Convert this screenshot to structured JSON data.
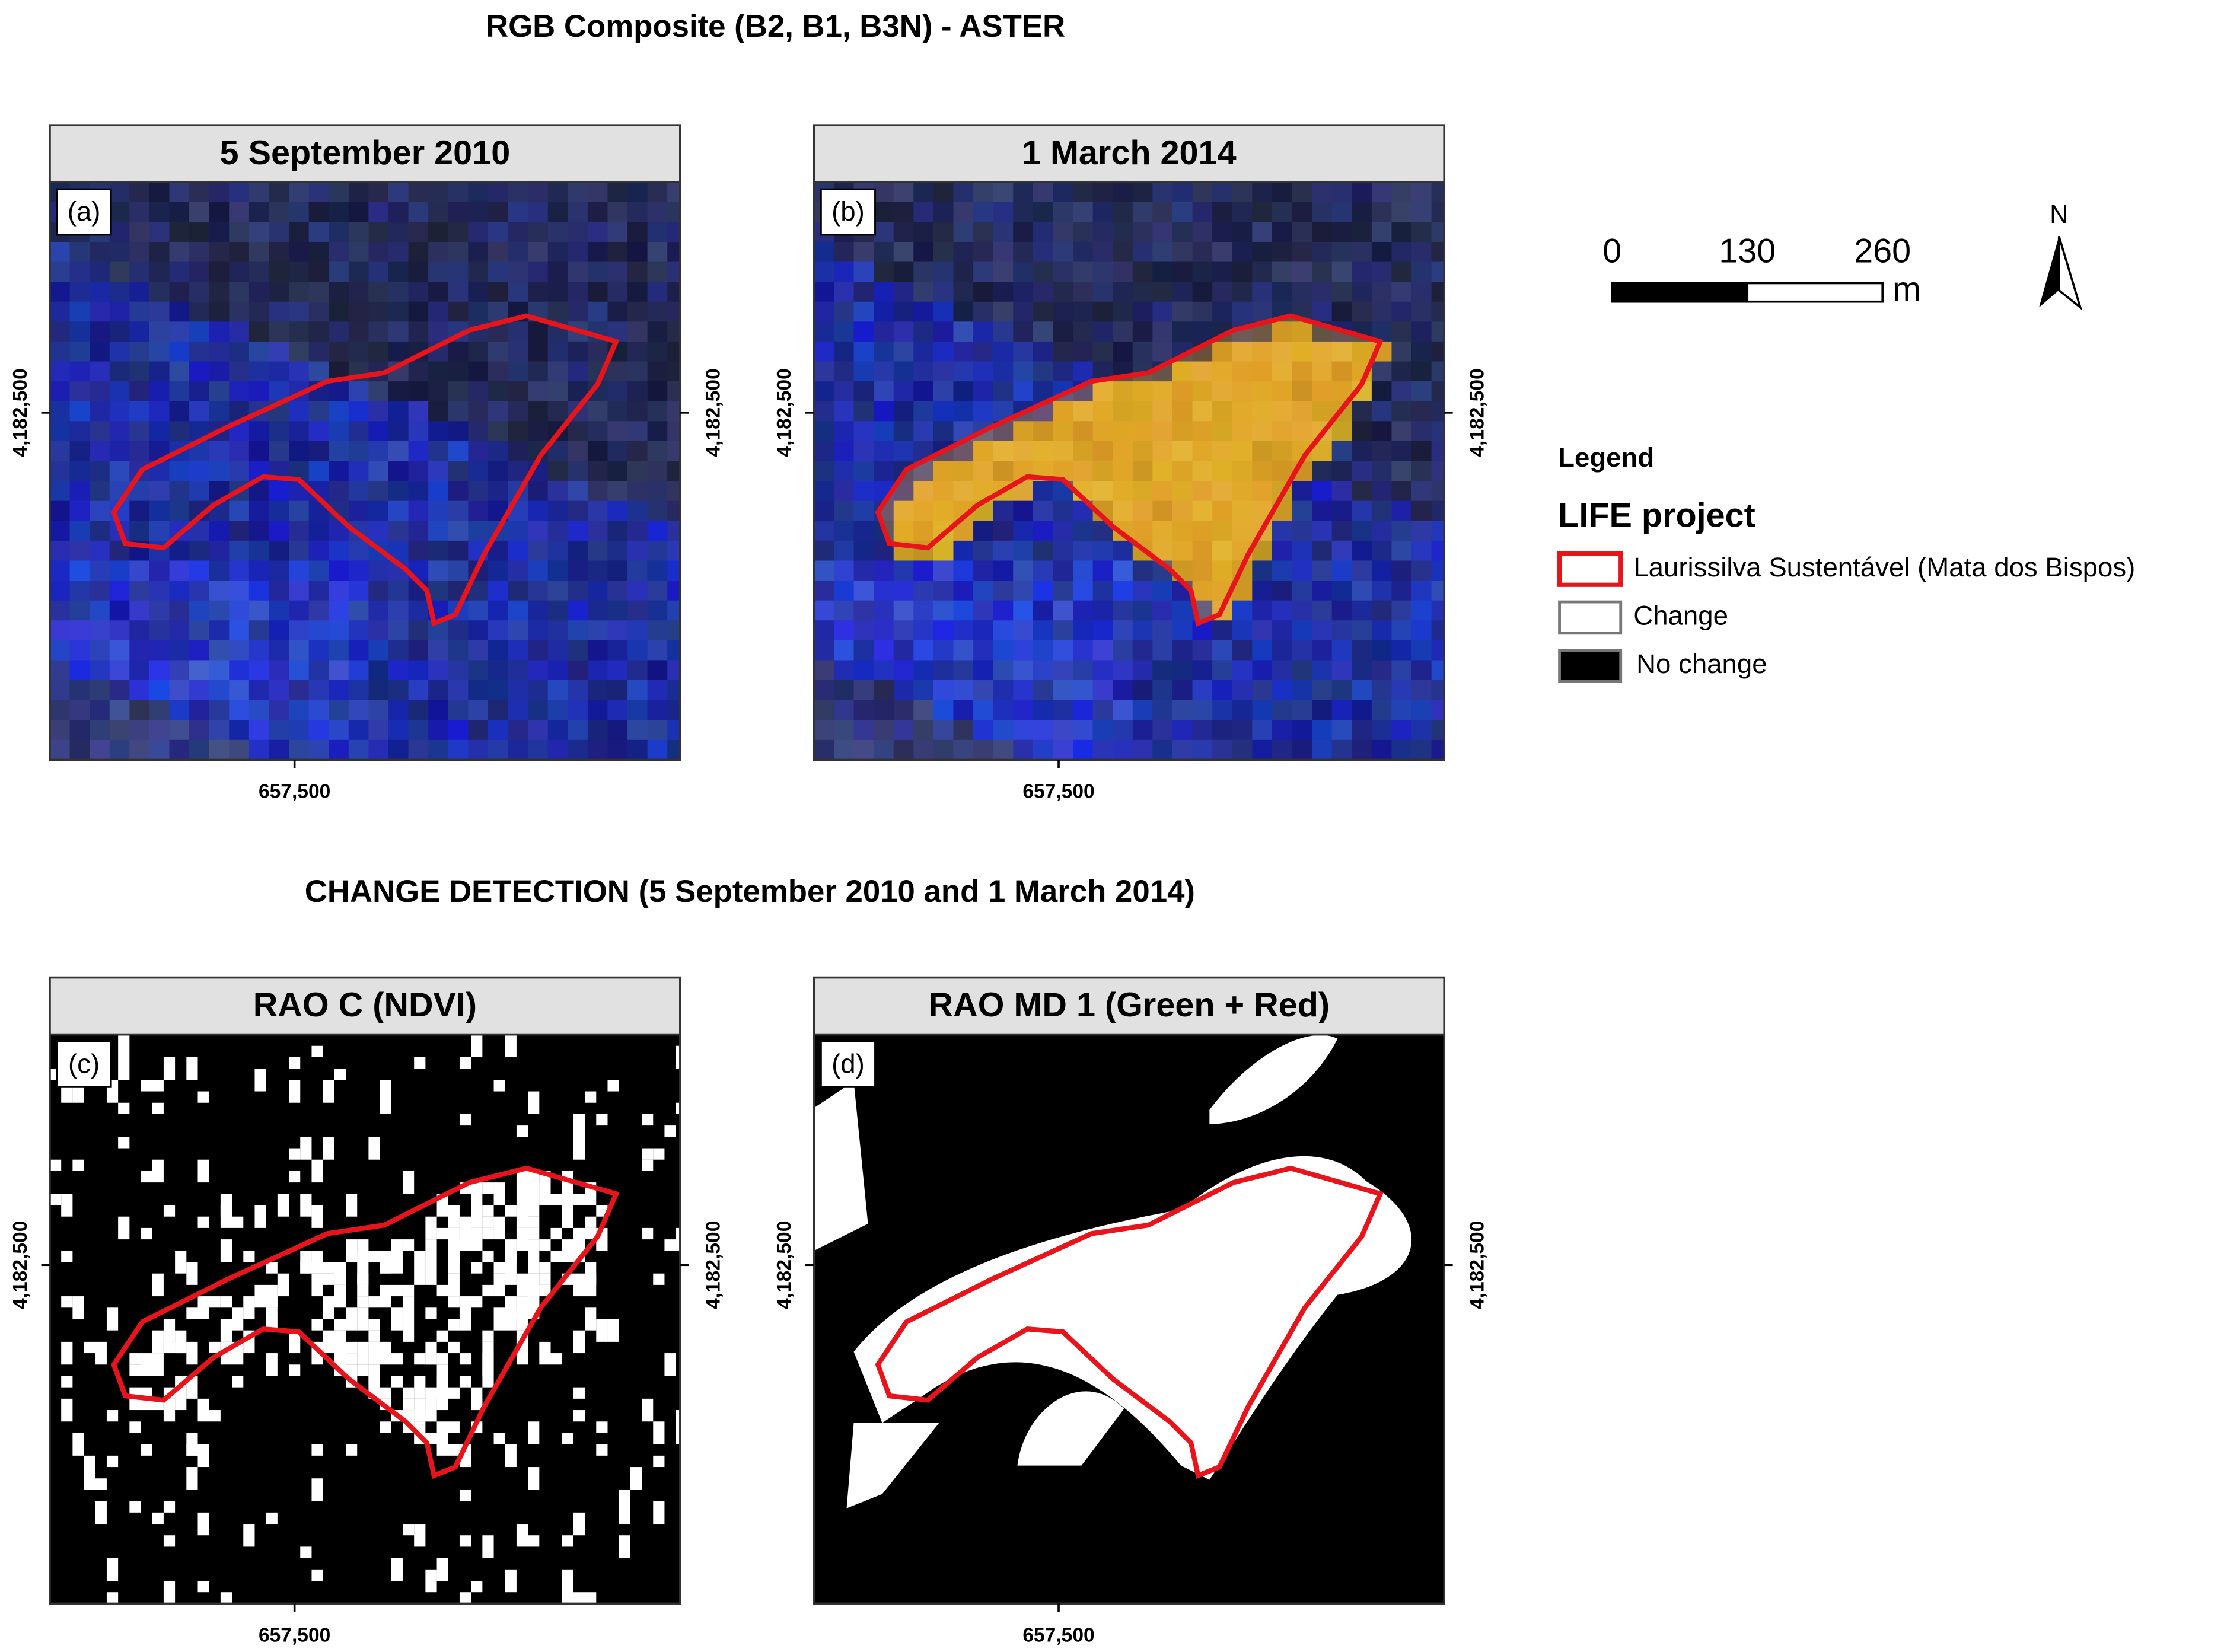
{
  "titles": {
    "top": "RGB Composite (B2, B1, B3N) - ASTER",
    "bottom": "CHANGE DETECTION (5 September 2010 and 1 March 2014)"
  },
  "panels": [
    {
      "header": "5 September 2010",
      "tag": "(a)",
      "y_label": "4,182,500",
      "x_label": "657,500"
    },
    {
      "header": "1 March 2014",
      "tag": "(b)",
      "y_label": "4,182,500",
      "x_label": "657,500"
    },
    {
      "header": "RAO C (NDVI)",
      "tag": "(c)",
      "y_label": "4,182,500",
      "x_label": "657,500"
    },
    {
      "header": "RAO MD 1 (Green + Red)",
      "tag": "(d)",
      "y_label": "4,182,500",
      "x_label": "657,500"
    }
  ],
  "scale_bar": {
    "ticks": [
      0,
      130,
      260
    ],
    "unit": "m"
  },
  "north_arrow": "N",
  "legend": {
    "title": "Legend",
    "group": "LIFE project",
    "items": [
      "Laurissilva Sustentável (Mata dos Bispos)",
      "Change",
      "No change"
    ]
  }
}
